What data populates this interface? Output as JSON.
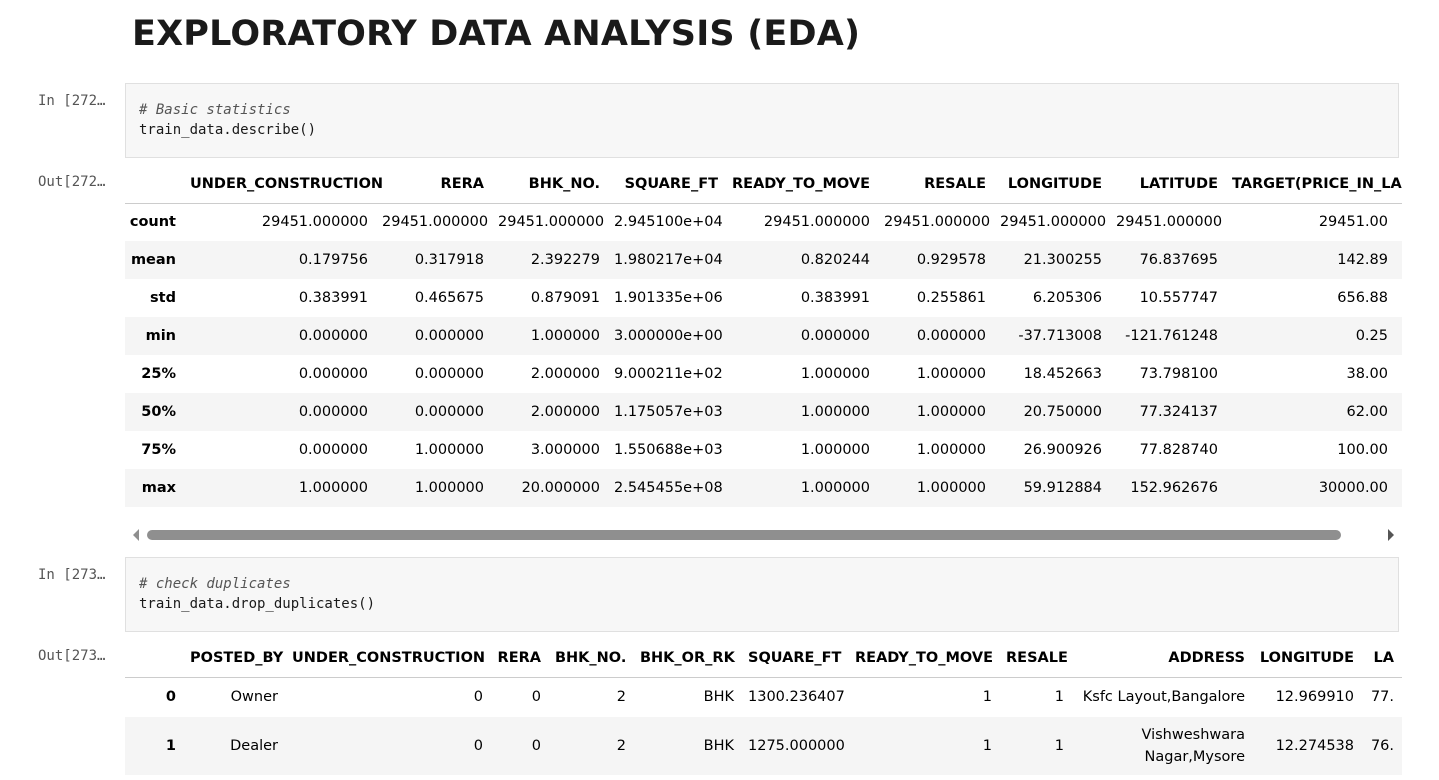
{
  "heading": "EXPLORATORY DATA ANALYSIS (EDA)",
  "cells": [
    {
      "prompt": "In [272…",
      "code": [
        "# Basic statistics",
        "train_data.describe()"
      ]
    },
    {
      "prompt": "Out[272…",
      "table": {
        "columns": [
          "UNDER_CONSTRUCTION",
          "RERA",
          "BHK_NO.",
          "SQUARE_FT",
          "READY_TO_MOVE",
          "RESALE",
          "LONGITUDE",
          "LATITUDE",
          "TARGET(PRICE_IN_LA"
        ],
        "rows": [
          [
            "count",
            "29451.000000",
            "29451.000000",
            "29451.000000",
            "2.945100e+04",
            "29451.000000",
            "29451.000000",
            "29451.000000",
            "29451.000000",
            "29451.00"
          ],
          [
            "mean",
            "0.179756",
            "0.317918",
            "2.392279",
            "1.980217e+04",
            "0.820244",
            "0.929578",
            "21.300255",
            "76.837695",
            "142.89"
          ],
          [
            "std",
            "0.383991",
            "0.465675",
            "0.879091",
            "1.901335e+06",
            "0.383991",
            "0.255861",
            "6.205306",
            "10.557747",
            "656.88"
          ],
          [
            "min",
            "0.000000",
            "0.000000",
            "1.000000",
            "3.000000e+00",
            "0.000000",
            "0.000000",
            "-37.713008",
            "-121.761248",
            "0.25"
          ],
          [
            "25%",
            "0.000000",
            "0.000000",
            "2.000000",
            "9.000211e+02",
            "1.000000",
            "1.000000",
            "18.452663",
            "73.798100",
            "38.00"
          ],
          [
            "50%",
            "0.000000",
            "0.000000",
            "2.000000",
            "1.175057e+03",
            "1.000000",
            "1.000000",
            "20.750000",
            "77.324137",
            "62.00"
          ],
          [
            "75%",
            "0.000000",
            "1.000000",
            "3.000000",
            "1.550688e+03",
            "1.000000",
            "1.000000",
            "26.900926",
            "77.828740",
            "100.00"
          ],
          [
            "max",
            "1.000000",
            "1.000000",
            "20.000000",
            "2.545455e+08",
            "1.000000",
            "1.000000",
            "59.912884",
            "152.962676",
            "30000.00"
          ]
        ]
      }
    },
    {
      "prompt": "In [273…",
      "code": [
        "# check duplicates",
        "train_data.drop_duplicates()"
      ]
    },
    {
      "prompt": "Out[273…",
      "table": {
        "columns": [
          "POSTED_BY",
          "UNDER_CONSTRUCTION",
          "RERA",
          "BHK_NO.",
          "BHK_OR_RK",
          "SQUARE_FT",
          "READY_TO_MOVE",
          "RESALE",
          "ADDRESS",
          "LONGITUDE",
          "LA"
        ],
        "rows": [
          [
            "0",
            "Owner",
            "0",
            "0",
            "2",
            "BHK",
            "1300.236407",
            "1",
            "1",
            "Ksfc Layout,Bangalore",
            "12.969910",
            "77."
          ],
          [
            "1",
            "Dealer",
            "0",
            "0",
            "2",
            "BHK",
            "1275.000000",
            "1",
            "1",
            "Vishweshwara Nagar,Mysore",
            "12.274538",
            "76."
          ]
        ]
      }
    }
  ]
}
